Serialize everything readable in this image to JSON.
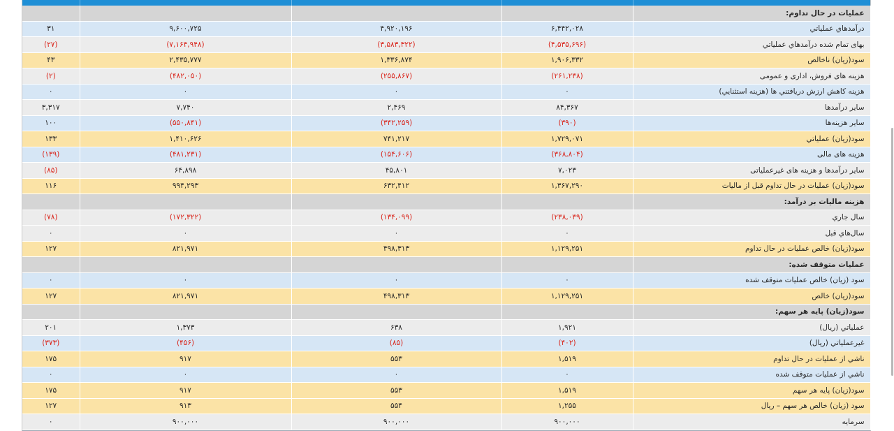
{
  "colors": {
    "header": "#1f8fd6",
    "blue_row": "#d6e6f5",
    "gray_row": "#ececec",
    "yellow_row": "#fbe3a6",
    "section_row": "#d5d5d5",
    "negative": "#d9261c"
  },
  "rows": [
    {
      "style": "section",
      "label": "عملیات در حال تداوم:",
      "c1": "",
      "c2": "",
      "c3": "",
      "c4": ""
    },
    {
      "style": "blue",
      "label": "درآمدهاي عملياتي",
      "c1": "۶,۴۴۲,۰۲۸",
      "c2": "۴,۹۲۰,۱۹۶",
      "c3": "۹,۶۰۰,۷۲۵",
      "c4": "۳۱"
    },
    {
      "style": "gray",
      "label": "بهاى تمام شده درآمدهاي عملياتي",
      "c1": "(۴,۵۳۵,۶۹۶)",
      "c2": "(۳,۵۸۳,۳۲۲)",
      "c3": "(۷,۱۶۴,۹۴۸)",
      "c4": "(۲۷)"
    },
    {
      "style": "yellow",
      "label": "سود(زيان) ناخالص",
      "c1": "۱,۹۰۶,۳۳۲",
      "c2": "۱,۳۳۶,۸۷۴",
      "c3": "۲,۴۳۵,۷۷۷",
      "c4": "۴۳"
    },
    {
      "style": "gray",
      "label": "هزينه هاى فروش، ادارى و عمومى",
      "c1": "(۲۶۱,۲۳۸)",
      "c2": "(۲۵۵,۸۶۷)",
      "c3": "(۴۸۲,۰۵۰)",
      "c4": "(۲)"
    },
    {
      "style": "blue",
      "label": "هزينه کاهش ارزش دريافتني ها (هزينه استثنايي)",
      "c1": "۰",
      "c2": "۰",
      "c3": "۰",
      "c4": "۰"
    },
    {
      "style": "gray",
      "label": "ساير درآمدها",
      "c1": "۸۴,۳۶۷",
      "c2": "۲,۴۶۹",
      "c3": "۷,۷۴۰",
      "c4": "۳,۳۱۷"
    },
    {
      "style": "blue",
      "label": "ساير هزينه‌ها",
      "c1": "(۳۹۰)",
      "c2": "(۳۴۲,۲۵۹)",
      "c3": "(۵۵۰,۸۴۱)",
      "c4": "۱۰۰"
    },
    {
      "style": "yellow",
      "label": "سود(زيان) عملياتي",
      "c1": "۱,۷۲۹,۰۷۱",
      "c2": "۷۴۱,۲۱۷",
      "c3": "۱,۴۱۰,۶۲۶",
      "c4": "۱۳۳"
    },
    {
      "style": "blue",
      "label": "هزينه هاى مالى",
      "c1": "(۳۶۸,۸۰۴)",
      "c2": "(۱۵۴,۶۰۶)",
      "c3": "(۴۸۱,۲۳۱)",
      "c4": "(۱۳۹)"
    },
    {
      "style": "gray",
      "label": "ساير درآمدها و هزينه هاى غيرعملياتى",
      "c1": "۷,۰۲۳",
      "c2": "۴۵,۸۰۱",
      "c3": "۶۴,۸۹۸",
      "c4": "(۸۵)"
    },
    {
      "style": "yellow",
      "label": "سود(زيان) عمليات در حال تداوم قبل از ماليات",
      "c1": "۱,۳۶۷,۲۹۰",
      "c2": "۶۳۲,۴۱۲",
      "c3": "۹۹۴,۲۹۳",
      "c4": "۱۱۶"
    },
    {
      "style": "section",
      "label": "هزينه ماليات بر درآمد:",
      "c1": "",
      "c2": "",
      "c3": "",
      "c4": ""
    },
    {
      "style": "gray",
      "label": "سال جاري",
      "c1": "(۲۳۸,۰۳۹)",
      "c2": "(۱۳۴,۰۹۹)",
      "c3": "(۱۷۲,۳۲۲)",
      "c4": "(۷۸)"
    },
    {
      "style": "gray",
      "label": "سال‌هاي قبل",
      "c1": "۰",
      "c2": "۰",
      "c3": "۰",
      "c4": "۰"
    },
    {
      "style": "yellow",
      "label": "سود(زيان) خالص عمليات در حال تداوم",
      "c1": "۱,۱۲۹,۲۵۱",
      "c2": "۴۹۸,۳۱۳",
      "c3": "۸۲۱,۹۷۱",
      "c4": "۱۲۷"
    },
    {
      "style": "section",
      "label": "عمليات متوقف شده:",
      "c1": "",
      "c2": "",
      "c3": "",
      "c4": ""
    },
    {
      "style": "blue",
      "label": "سود (زيان) خالص عمليات متوقف شده",
      "c1": "۰",
      "c2": "۰",
      "c3": "۰",
      "c4": "۰"
    },
    {
      "style": "yellow",
      "label": "سود(زيان) خالص",
      "c1": "۱,۱۲۹,۲۵۱",
      "c2": "۴۹۸,۳۱۳",
      "c3": "۸۲۱,۹۷۱",
      "c4": "۱۲۷"
    },
    {
      "style": "section",
      "label": "سود(زيان) پايه هر سهم:",
      "c1": "",
      "c2": "",
      "c3": "",
      "c4": ""
    },
    {
      "style": "gray",
      "label": "عملياتي (ريال)",
      "c1": "۱,۹۲۱",
      "c2": "۶۳۸",
      "c3": "۱,۳۷۳",
      "c4": "۲۰۱"
    },
    {
      "style": "blue",
      "label": "غيرعملياتي (ريال)",
      "c1": "(۴۰۲)",
      "c2": "(۸۵)",
      "c3": "(۴۵۶)",
      "c4": "(۳۷۳)"
    },
    {
      "style": "yellow",
      "label": "ناشي از عمليات در حال تداوم",
      "c1": "۱,۵۱۹",
      "c2": "۵۵۳",
      "c3": "۹۱۷",
      "c4": "۱۷۵"
    },
    {
      "style": "blue",
      "label": "ناشي از عمليات متوقف شده",
      "c1": "۰",
      "c2": "۰",
      "c3": "۰",
      "c4": "۰"
    },
    {
      "style": "yellow",
      "label": "سود(زيان) پايه هر سهم",
      "c1": "۱,۵۱۹",
      "c2": "۵۵۳",
      "c3": "۹۱۷",
      "c4": "۱۷۵"
    },
    {
      "style": "yellow",
      "label": "سود (زيان) خالص هر سهم – ريال",
      "c1": "۱,۲۵۵",
      "c2": "۵۵۴",
      "c3": "۹۱۳",
      "c4": "۱۲۷"
    },
    {
      "style": "gray",
      "label": "سرمايه",
      "c1": "۹۰۰,۰۰۰",
      "c2": "۹۰۰,۰۰۰",
      "c3": "۹۰۰,۰۰۰",
      "c4": "۰"
    }
  ]
}
